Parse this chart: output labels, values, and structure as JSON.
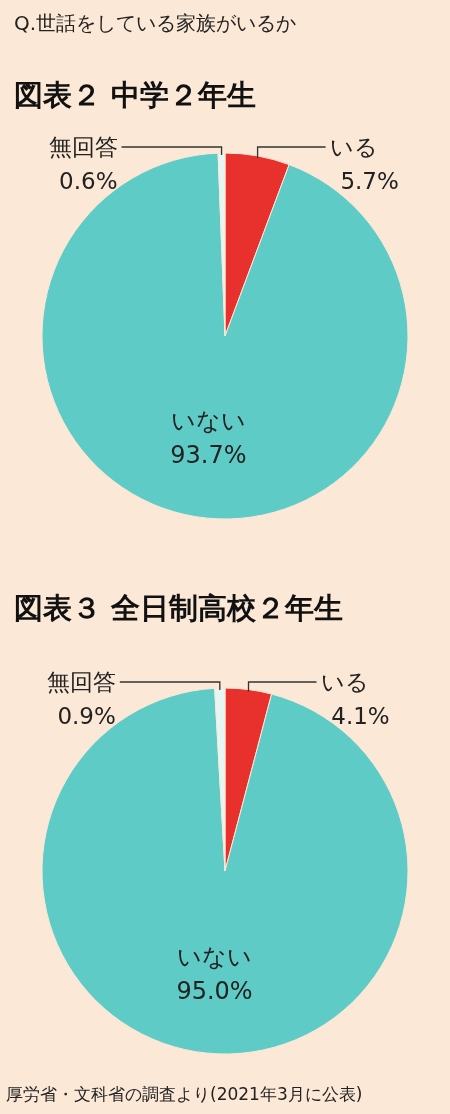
{
  "chart_data": [
    {
      "type": "pie",
      "title": "Q.世話をしている家族がいるか",
      "subtitle": "図表２ 中学２年生",
      "categories": [
        "いる",
        "いない",
        "無回答"
      ],
      "values": [
        5.7,
        93.7,
        0.6
      ],
      "value_labels": [
        "5.7%",
        "93.7%",
        "0.6%"
      ],
      "colors": [
        "#e8302c",
        "#5fcbc7",
        "#e6f6f3"
      ]
    },
    {
      "type": "pie",
      "title": "図表３ 全日制高校２年生",
      "categories": [
        "いる",
        "いない",
        "無回答"
      ],
      "values": [
        4.1,
        95.0,
        0.9
      ],
      "value_labels": [
        "4.1%",
        "95.0%",
        "0.9%"
      ],
      "colors": [
        "#e8302c",
        "#5fcbc7",
        "#e6f6f3"
      ],
      "annotations": [
        "厚労省・文科省の調査より(2021年3月に公表)"
      ]
    }
  ]
}
